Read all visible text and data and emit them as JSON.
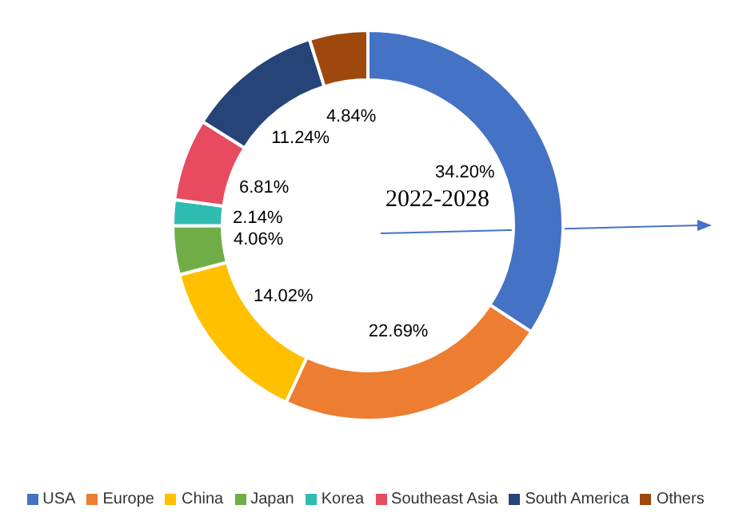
{
  "chart_data": {
    "type": "donut",
    "categories": [
      "USA",
      "Europe",
      "China",
      "Japan",
      "Korea",
      "Southeast Asia",
      "South America",
      "Others"
    ],
    "values": [
      34.2,
      22.69,
      14.02,
      4.06,
      2.14,
      6.81,
      11.24,
      4.84
    ],
    "colors": [
      "#4472c4",
      "#ed7d31",
      "#ffc000",
      "#70ad47",
      "#2ebcb0",
      "#e84a5f",
      "#264478",
      "#9e480e"
    ],
    "value_labels": [
      "34.20%",
      "22.69%",
      "14.02%",
      "4.06%",
      "2.14%",
      "6.81%",
      "11.24%",
      "4.84%"
    ],
    "annotations": [
      "2022-2028"
    ],
    "legend": "bottom"
  }
}
